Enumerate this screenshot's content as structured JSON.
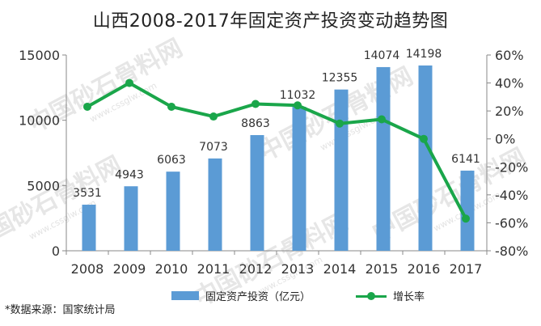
{
  "title": "山西2008-2017年固定资产投资变动趋势图",
  "watermark": "中国砂石骨料网",
  "watermark_url": "www.cssglw.com",
  "source": "*数据来源：国家统计局",
  "colors": {
    "bar": "#5b9bd5",
    "line": "#1aa64a",
    "axis": "#888888",
    "text": "#333333"
  },
  "chart_data": {
    "type": "bar",
    "categories": [
      "2008",
      "2009",
      "2010",
      "2011",
      "2012",
      "2013",
      "2014",
      "2015",
      "2016",
      "2017"
    ],
    "series": [
      {
        "name": "固定资产投资（亿元）",
        "type": "bar",
        "axis": "left",
        "values": [
          3531,
          4943,
          6063,
          7073,
          8863,
          11032,
          12355,
          14074,
          14198,
          6141
        ]
      },
      {
        "name": "增长率",
        "type": "line",
        "axis": "right",
        "values": [
          23,
          40,
          23,
          16,
          25,
          24,
          11,
          14,
          0,
          -57
        ]
      }
    ],
    "left_axis": {
      "ylim": [
        0,
        15000
      ],
      "ticks": [
        "0",
        "5000",
        "10000",
        "15000"
      ]
    },
    "right_axis": {
      "ylim": [
        -80,
        60
      ],
      "ticks": [
        "-80%",
        "-60%",
        "-40%",
        "-20%",
        "0%",
        "20%",
        "40%",
        "60%"
      ]
    },
    "legend_position": "bottom",
    "grid": false
  }
}
